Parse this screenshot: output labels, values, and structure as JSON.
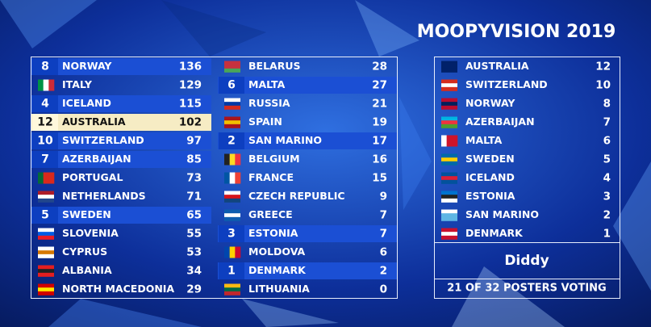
{
  "title": "MOOPYVISION 2019",
  "scoreboard": {
    "rows": [
      {
        "received": 8,
        "country": "NORWAY",
        "total": 136
      },
      {
        "received": null,
        "country": "ITALY",
        "total": 129
      },
      {
        "received": 4,
        "country": "ICELAND",
        "total": 115
      },
      {
        "received": 12,
        "country": "AUSTRALIA",
        "total": 102
      },
      {
        "received": 10,
        "country": "SWITZERLAND",
        "total": 97
      },
      {
        "received": 7,
        "country": "AZERBAIJAN",
        "total": 85
      },
      {
        "received": null,
        "country": "PORTUGAL",
        "total": 73
      },
      {
        "received": null,
        "country": "NETHERLANDS",
        "total": 71
      },
      {
        "received": 5,
        "country": "SWEDEN",
        "total": 65
      },
      {
        "received": null,
        "country": "SLOVENIA",
        "total": 55
      },
      {
        "received": null,
        "country": "CYPRUS",
        "total": 53
      },
      {
        "received": null,
        "country": "ALBANIA",
        "total": 34
      },
      {
        "received": null,
        "country": "NORTH MACEDONIA",
        "total": 29
      },
      {
        "received": null,
        "country": "BELARUS",
        "total": 28
      },
      {
        "received": 6,
        "country": "MALTA",
        "total": 27
      },
      {
        "received": null,
        "country": "RUSSIA",
        "total": 21
      },
      {
        "received": null,
        "country": "SPAIN",
        "total": 19
      },
      {
        "received": 2,
        "country": "SAN MARINO",
        "total": 17
      },
      {
        "received": null,
        "country": "BELGIUM",
        "total": 16
      },
      {
        "received": null,
        "country": "FRANCE",
        "total": 15
      },
      {
        "received": null,
        "country": "CZECH REPUBLIC",
        "total": 9
      },
      {
        "received": null,
        "country": "GREECE",
        "total": 7
      },
      {
        "received": 3,
        "country": "ESTONIA",
        "total": 7
      },
      {
        "received": null,
        "country": "MOLDOVA",
        "total": 6
      },
      {
        "received": 1,
        "country": "DENMARK",
        "total": 2
      },
      {
        "received": null,
        "country": "LITHUANIA",
        "total": 0
      }
    ]
  },
  "voter": {
    "votes": [
      {
        "country": "AUSTRALIA",
        "points": 12
      },
      {
        "country": "SWITZERLAND",
        "points": 10
      },
      {
        "country": "NORWAY",
        "points": 8
      },
      {
        "country": "AZERBAIJAN",
        "points": 7
      },
      {
        "country": "MALTA",
        "points": 6
      },
      {
        "country": "SWEDEN",
        "points": 5
      },
      {
        "country": "ICELAND",
        "points": 4
      },
      {
        "country": "ESTONIA",
        "points": 3
      },
      {
        "country": "SAN MARINO",
        "points": 2
      },
      {
        "country": "DENMARK",
        "points": 1
      }
    ],
    "name": "Diddy",
    "status": "21 OF 32 POSTERS VOTING"
  }
}
